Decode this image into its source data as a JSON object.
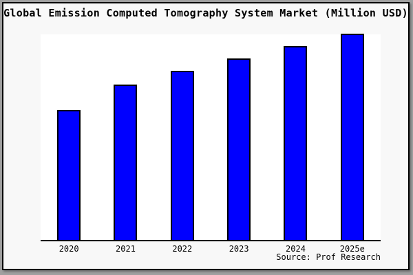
{
  "window": {
    "background_color": "#a0a0a0",
    "card_background_color": "#f8f8f8",
    "plot_background_color": "#ffffff"
  },
  "title": "Global Emission Computed Tomography System Market (Million USD)",
  "source": "Source: Prof Research",
  "chart_data": {
    "type": "bar",
    "title": "Global Emission Computed Tomography System Market (Million USD)",
    "categories": [
      "2020",
      "2021",
      "2022",
      "2023",
      "2024",
      "2025e"
    ],
    "values": [
      62.8,
      75.2,
      81.9,
      87.9,
      94.0,
      100.0
    ],
    "value_unit": "relative index (no y-axis tick labels shown; normalized so 2025e = 100)",
    "xlabel": "",
    "ylabel": "",
    "ylim": [
      0,
      100
    ],
    "grid": false,
    "legend": false,
    "bar_color": "#0000ff",
    "bar_border_color": "#000000",
    "axis_color": "#000000",
    "annotation": "Source: Prof Research"
  }
}
